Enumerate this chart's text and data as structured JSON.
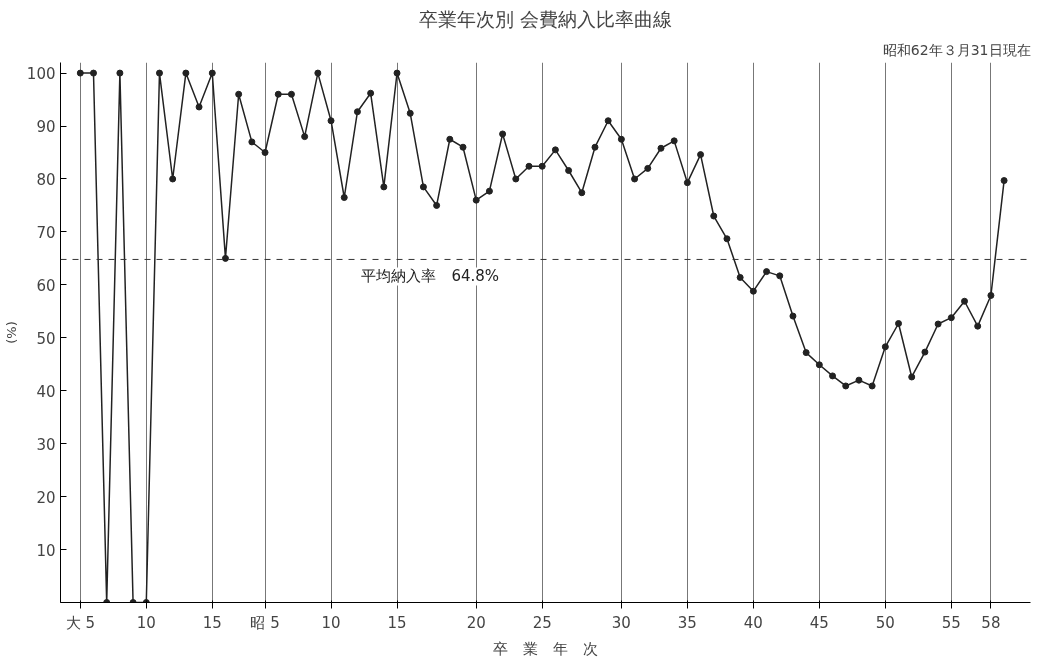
{
  "chart_data": {
    "type": "line",
    "title": "卒業年次別 会費納入比率曲線",
    "subtitle": "昭和62年３月31日現在",
    "ylabel": "(%)",
    "xlabel": "卒　業　年　次",
    "categories": [
      "大 5",
      null,
      null,
      null,
      null,
      "10",
      null,
      null,
      null,
      null,
      "15",
      null,
      null,
      null,
      "昭 5",
      null,
      null,
      null,
      null,
      "10",
      null,
      null,
      null,
      null,
      "15",
      null,
      null,
      null,
      null,
      null,
      "20",
      null,
      null,
      null,
      null,
      "25",
      null,
      null,
      null,
      null,
      null,
      "30",
      null,
      null,
      null,
      null,
      "35",
      null,
      null,
      null,
      null,
      "40",
      null,
      null,
      null,
      null,
      "45",
      null,
      null,
      null,
      null,
      "50",
      null,
      null,
      null,
      null,
      "55",
      null,
      null,
      "58",
      null
    ],
    "series": [
      {
        "color": "#222222",
        "values": [
          100,
          100,
          0,
          100,
          0,
          0,
          100,
          80,
          100,
          93.6,
          100,
          65,
          96,
          87,
          85,
          96,
          96,
          88,
          100,
          91,
          76.5,
          92.7,
          96.2,
          78.5,
          100,
          92.4,
          78.5,
          75,
          87.5,
          86,
          76,
          77.7,
          88.5,
          80,
          82.4,
          82.4,
          85.5,
          81.6,
          77.4,
          86,
          91,
          87.5,
          80,
          82,
          85.8,
          87.2,
          79.3,
          84.6,
          73,
          68.7,
          61.4,
          58.8,
          62.5,
          61.7,
          54.1,
          47.2,
          44.9,
          42.8,
          40.9,
          42,
          40.9,
          48.3,
          52.7,
          42.6,
          47.3,
          52.6,
          53.8,
          56.9,
          52.2,
          58,
          79.7
        ]
      }
    ],
    "ylim": [
      0,
      102
    ],
    "yticks": [
      {
        "value": 0,
        "label": null
      },
      10,
      20,
      30,
      40,
      50,
      60,
      70,
      80,
      90,
      100
    ],
    "ref_lines": [
      {
        "axis": "y",
        "value": 64.8,
        "label": "平均納入率　64.8%",
        "line_style": "dashed",
        "color": "#333333"
      }
    ],
    "marker": "circle",
    "line_style": "solid",
    "grid": "x"
  }
}
